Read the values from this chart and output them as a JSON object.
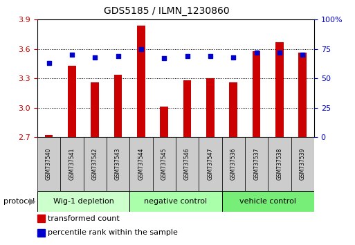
{
  "title": "GDS5185 / ILMN_1230860",
  "categories": [
    "GSM737540",
    "GSM737541",
    "GSM737542",
    "GSM737543",
    "GSM737544",
    "GSM737545",
    "GSM737546",
    "GSM737547",
    "GSM737536",
    "GSM737537",
    "GSM737538",
    "GSM737539"
  ],
  "bar_values": [
    2.72,
    3.43,
    3.26,
    3.34,
    3.84,
    3.01,
    3.28,
    3.3,
    3.26,
    3.58,
    3.67,
    3.56
  ],
  "percentile_values": [
    63,
    70,
    68,
    69,
    75,
    67,
    69,
    69,
    68,
    72,
    72,
    70
  ],
  "bar_color": "#cc0000",
  "percentile_color": "#0000cc",
  "ylim_left": [
    2.7,
    3.9
  ],
  "ylim_right": [
    0,
    100
  ],
  "yticks_left": [
    2.7,
    3.0,
    3.3,
    3.6,
    3.9
  ],
  "yticks_right": [
    0,
    25,
    50,
    75,
    100
  ],
  "ytick_labels_right": [
    "0",
    "25",
    "50",
    "75",
    "100%"
  ],
  "groups": [
    {
      "label": "Wig-1 depletion",
      "start": 0,
      "end": 3,
      "color": "#ccffcc"
    },
    {
      "label": "negative control",
      "start": 4,
      "end": 7,
      "color": "#aaffaa"
    },
    {
      "label": "vehicle control",
      "start": 8,
      "end": 11,
      "color": "#77ee77"
    }
  ],
  "protocol_label": "protocol",
  "legend_items": [
    {
      "label": "transformed count",
      "color": "#cc0000"
    },
    {
      "label": "percentile rank within the sample",
      "color": "#0000cc"
    }
  ],
  "background_color": "#ffffff",
  "bar_bottom": 2.7,
  "sample_box_color": "#cccccc",
  "tick_label_color_left": "#cc0000",
  "tick_label_color_right": "#0000cc",
  "grid_yticks": [
    3.0,
    3.3,
    3.6
  ]
}
